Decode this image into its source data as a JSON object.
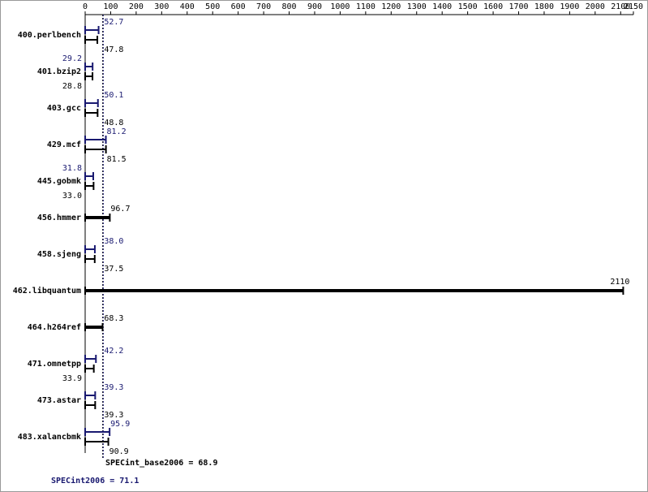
{
  "chart_data": {
    "type": "bar",
    "orientation": "horizontal",
    "categories": [
      "400.perlbench",
      "401.bzip2",
      "403.gcc",
      "429.mcf",
      "445.gobmk",
      "456.hmmer",
      "458.sjeng",
      "462.libquantum",
      "464.h264ref",
      "471.omnetpp",
      "473.astar",
      "483.xalancbmk"
    ],
    "series": [
      {
        "name": "SPECint2006",
        "color": "#191970",
        "values": [
          52.7,
          29.2,
          50.1,
          81.2,
          31.8,
          null,
          38.0,
          null,
          null,
          42.2,
          39.3,
          95.9
        ],
        "value_labels": [
          "52.7",
          "29.2",
          "50.1",
          "81.2",
          "31.8",
          null,
          "38.0",
          null,
          null,
          "42.2",
          "39.3",
          "95.9"
        ]
      },
      {
        "name": "SPECint_base2006",
        "color": "#000000",
        "values": [
          47.8,
          28.8,
          48.8,
          81.5,
          33.0,
          96.7,
          37.5,
          2110,
          68.3,
          33.9,
          39.3,
          90.9
        ],
        "value_labels": [
          "47.8",
          "28.8",
          "48.8",
          "81.5",
          "33.0",
          "96.7",
          "37.5",
          "2110",
          "68.3",
          "33.9",
          "39.3",
          "90.9"
        ]
      }
    ],
    "xlim": [
      0,
      2150
    ],
    "xticks": [
      0,
      100,
      200,
      300,
      400,
      500,
      600,
      700,
      800,
      900,
      1000,
      1100,
      1200,
      1300,
      1400,
      1500,
      1600,
      1700,
      1800,
      1900,
      2000,
      2100,
      2150
    ],
    "reference_lines": [
      {
        "label": "SPECint_base2006 = 68.9",
        "value": 68.9,
        "color": "#000000"
      },
      {
        "label": "SPECint2006 = 71.1",
        "value": 71.1,
        "color": "#191970"
      }
    ]
  }
}
